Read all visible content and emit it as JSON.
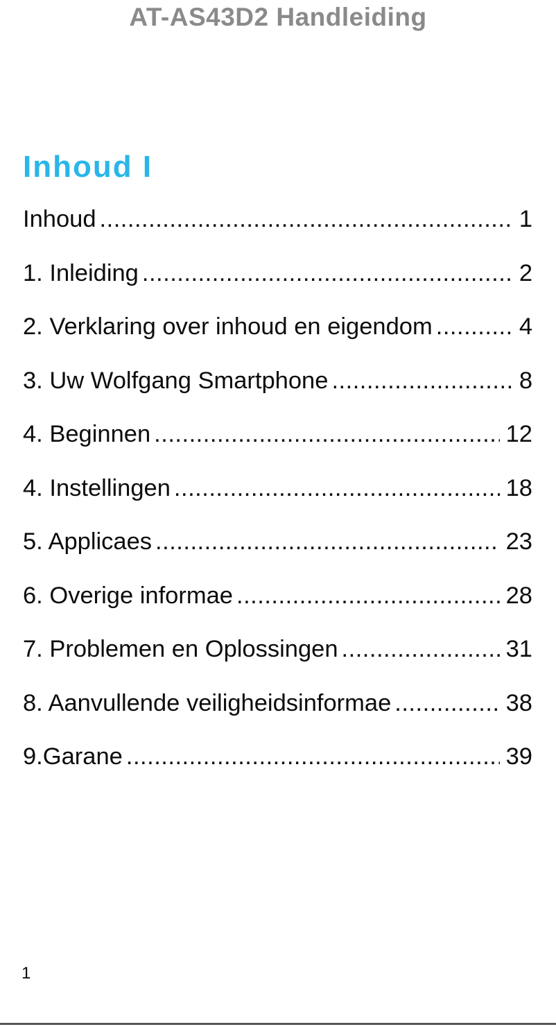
{
  "header": {
    "title": "AT-AS43D2 Handleiding"
  },
  "toc": {
    "heading": "Inhoud I",
    "entries": [
      {
        "title": "Inhoud",
        "page": "1"
      },
      {
        "title": "1. Inleiding",
        "page": "2"
      },
      {
        "title": "2. Verklaring over inhoud en eigendom",
        "page": "4"
      },
      {
        "title": "3. Uw Wolfgang Smartphone",
        "page": "8"
      },
      {
        "title": "4. Beginnen",
        "page": "12"
      },
      {
        "title": "4. Instellingen",
        "page": "18"
      },
      {
        "title": "5. Applicaes",
        "page": "23"
      },
      {
        "title": "6. Overige informae",
        "page": "28"
      },
      {
        "title": "7. Problemen en Oplossingen",
        "page": "31"
      },
      {
        "title": "8. Aanvullende veiligheidsinformae",
        "page": "38"
      },
      {
        "title": "9.Garane",
        "page": "39"
      }
    ]
  },
  "footer": {
    "page_number": "1"
  },
  "colors": {
    "header_gray": "#8a8a8a",
    "heading_cyan": "#29b6e9",
    "body_text": "#0c0c0c",
    "rule_gray": "#55555a"
  }
}
